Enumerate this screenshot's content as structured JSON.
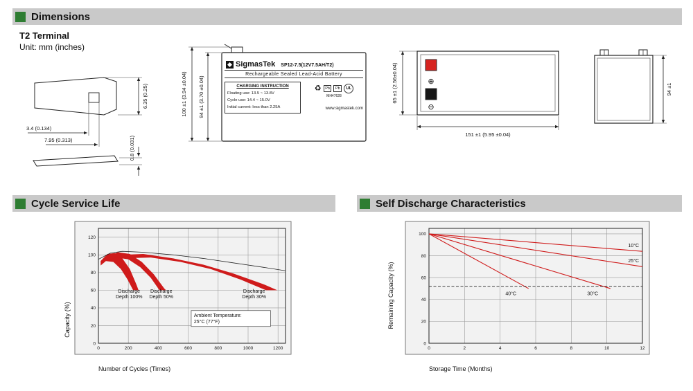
{
  "sections": {
    "dimensions": "Dimensions",
    "cycle": "Cycle Service Life",
    "self_discharge": "Self Discharge Characteristics"
  },
  "header": {
    "terminal_heading": "T2 Terminal",
    "unit_note": "Unit: mm (inches)"
  },
  "colors": {
    "header_bar_bg": "#c9c9c9",
    "accent_green": "#2e7d32",
    "chart_red": "#cf1b1b",
    "plot_bg": "#f2f2f2",
    "terminal_red": "#d6231f",
    "terminal_black": "#161616"
  },
  "drawings": {
    "terminal_detail": {
      "dim_hole_width": "3.4 (0.134)",
      "dim_hole_offset": "7.95 (0.313)",
      "dim_tab_width": "6.35 (0.25)",
      "dim_thickness": "0.8 (0.031)"
    },
    "front_view": {
      "dim_total_height": "100 ±1 (3.94 ±0.04)",
      "dim_body_height": "94 ±1 (3.70 ±0.04)",
      "label": {
        "brand": "SigmasTek",
        "model": "SP12-7.5(12V7.5AH/T2)",
        "subtitle": "Rechargeable Sealed Lead-Acid Battery",
        "charging_title": "CHARGING INSTRUCTION",
        "charging_lines": [
          "Floating use: 13.5 ~ 13.8V",
          "Cycle use: 14.4 ~ 15.0V",
          "Initial current: less than 2.25A"
        ],
        "pb_label": "Pb",
        "ul_mark": "UL",
        "ul_code": "MH47628",
        "website": "www.sigmastek.com"
      }
    },
    "top_view": {
      "dim_width": "65 ±1 (2.56±0.04)",
      "dim_length": "151 ±1 (5.95 ±0.04)",
      "plus_symbol": "⊕",
      "minus_symbol": "⊖"
    },
    "side_view": {
      "dim_height": "94 ±1"
    }
  },
  "chart_data": [
    {
      "id": "cycle",
      "type": "area",
      "title": "Cycle Service Life",
      "xlabel": "Number of Cycles (Times)",
      "ylabel": "Capacity (%)",
      "xlim": [
        0,
        1250
      ],
      "ylim": [
        0,
        130
      ],
      "xticks": [
        0,
        200,
        400,
        600,
        800,
        1000,
        1200
      ],
      "yticks": [
        0,
        20,
        40,
        60,
        80,
        100,
        120
      ],
      "grid": true,
      "bands": [
        {
          "label": [
            "Discharge",
            "Depth 100%"
          ],
          "label_at": [
            205,
            57
          ],
          "polygon": [
            [
              15,
              93
            ],
            [
              60,
              101
            ],
            [
              110,
              102
            ],
            [
              160,
              96
            ],
            [
              210,
              84
            ],
            [
              255,
              66
            ],
            [
              268,
              60
            ],
            [
              232,
              60
            ],
            [
              195,
              72
            ],
            [
              150,
              84
            ],
            [
              100,
              92
            ],
            [
              50,
              93
            ],
            [
              15,
              88
            ]
          ]
        },
        {
          "label": [
            "Discharge",
            "Depth 50%"
          ],
          "label_at": [
            420,
            57
          ],
          "polygon": [
            [
              60,
              98
            ],
            [
              130,
              103
            ],
            [
              210,
              101
            ],
            [
              290,
              92
            ],
            [
              370,
              78
            ],
            [
              440,
              62
            ],
            [
              452,
              60
            ],
            [
              408,
              60
            ],
            [
              350,
              74
            ],
            [
              280,
              86
            ],
            [
              200,
              95
            ],
            [
              120,
              97
            ],
            [
              60,
              94
            ]
          ]
        },
        {
          "label": [
            "Discharge",
            "Depth 30%"
          ],
          "label_at": [
            1040,
            57
          ],
          "polygon": [
            [
              150,
              100
            ],
            [
              300,
              101
            ],
            [
              500,
              96
            ],
            [
              700,
              89
            ],
            [
              900,
              79
            ],
            [
              1100,
              67
            ],
            [
              1195,
              60
            ],
            [
              1120,
              60
            ],
            [
              950,
              72
            ],
            [
              750,
              84
            ],
            [
              550,
              92
            ],
            [
              350,
              97
            ],
            [
              150,
              96
            ]
          ]
        }
      ],
      "envelope": [
        [
          0,
          95
        ],
        [
          80,
          102
        ],
        [
          160,
          104
        ],
        [
          300,
          103
        ],
        [
          500,
          100
        ],
        [
          700,
          96
        ],
        [
          900,
          91
        ],
        [
          1100,
          86
        ],
        [
          1250,
          82
        ]
      ],
      "annotation_box": {
        "x": [
          620,
          1150
        ],
        "y": [
          19,
          37
        ],
        "lines": [
          "Ambient Temperature:",
          "25°C (77°F)"
        ]
      }
    },
    {
      "id": "self_discharge",
      "type": "line",
      "title": "Self Discharge Characteristics",
      "xlabel": "Storage Time (Months)",
      "ylabel": "Remaining Capacity (%)",
      "xlim": [
        0,
        12
      ],
      "ylim": [
        0,
        105
      ],
      "xticks": [
        0,
        2,
        4,
        6,
        8,
        10,
        12
      ],
      "yticks": [
        0,
        20,
        40,
        60,
        80,
        100
      ],
      "grid": true,
      "series": [
        {
          "name": "10°C",
          "points": [
            [
              0,
              100
            ],
            [
              12,
              84
            ]
          ],
          "label_at": [
            11.2,
            88
          ]
        },
        {
          "name": "25°C",
          "points": [
            [
              0,
              100
            ],
            [
              12,
              70
            ]
          ],
          "label_at": [
            11.2,
            74
          ]
        },
        {
          "name": "30°C",
          "points": [
            [
              0,
              100
            ],
            [
              10.2,
              50
            ]
          ],
          "label_at": [
            8.9,
            44
          ]
        },
        {
          "name": "40°C",
          "points": [
            [
              0,
              100
            ],
            [
              5.6,
              50
            ]
          ],
          "label_at": [
            4.3,
            44
          ]
        }
      ],
      "reference_line": {
        "y": 52,
        "style": "dashed"
      }
    }
  ]
}
